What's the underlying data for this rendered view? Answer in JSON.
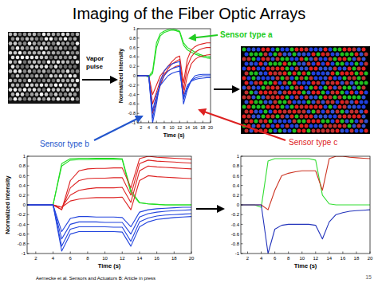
{
  "slide": {
    "title": "Imaging of the Fiber Optic Arrays",
    "vapor_pulse": [
      "Vapor",
      "pulse"
    ],
    "sensor_labels": [
      {
        "text": "Sensor type a",
        "color": "#22cc22"
      },
      {
        "text": "Sensor type b",
        "color": "#2255cc"
      },
      {
        "text": "Sensor type c",
        "color": "#dd2222"
      }
    ],
    "citation": "Aernecke et al. Sensors and Actuators B: Article in press",
    "page": "15"
  },
  "chart_data": [
    {
      "type": "line",
      "x_label": "Time (s)",
      "y_label": "Normalized intensity",
      "x": [
        1,
        2,
        3,
        4,
        5,
        6,
        7,
        8,
        9,
        10,
        11,
        12,
        13,
        14,
        15,
        16,
        17,
        18,
        19,
        20
      ],
      "xlim": [
        1,
        20
      ],
      "xticks": [
        2,
        4,
        6,
        8,
        10,
        12,
        14,
        16,
        18,
        20
      ],
      "ylim": [
        -1,
        1
      ],
      "yticks": [
        -1,
        -0.8,
        -0.6,
        -0.4,
        -0.2,
        0,
        0.2,
        0.4,
        0.6,
        0.8,
        1
      ],
      "series": [
        {
          "color": "#22dd22",
          "values": [
            0,
            0,
            0,
            -0.02,
            0.1,
            0.7,
            0.9,
            0.95,
            0.98,
            1,
            0.98,
            0.95,
            0.7,
            0.6,
            0.55,
            0.5,
            0.46,
            0.43,
            0.41,
            0.4
          ]
        },
        {
          "color": "#22dd22",
          "values": [
            0,
            0,
            0,
            -0.03,
            0.05,
            0.6,
            0.85,
            0.92,
            0.95,
            0.97,
            0.96,
            0.93,
            0.65,
            0.55,
            0.5,
            0.46,
            0.43,
            0.4,
            0.38,
            0.37
          ]
        },
        {
          "color": "#dd2222",
          "values": [
            0,
            0,
            0,
            0,
            -0.8,
            -0.5,
            -0.2,
            0,
            0.15,
            0.25,
            0.3,
            0.35,
            -0.3,
            0.2,
            0.4,
            0.5,
            0.55,
            0.58,
            0.6,
            0.6
          ]
        },
        {
          "color": "#dd2222",
          "values": [
            0,
            0,
            0,
            0,
            -0.6,
            -0.35,
            -0.1,
            0.05,
            0.1,
            0.15,
            0.2,
            0.22,
            -0.4,
            0,
            0.25,
            0.35,
            0.4,
            0.42,
            0.44,
            0.45
          ]
        },
        {
          "color": "#dd2222",
          "values": [
            0,
            0,
            0,
            0,
            -0.4,
            -0.2,
            0,
            0.1,
            0.2,
            0.3,
            0.38,
            0.42,
            -0.15,
            0.35,
            0.55,
            0.62,
            0.66,
            0.68,
            0.7,
            0.7
          ]
        },
        {
          "color": "#2244dd",
          "values": [
            0,
            0,
            0,
            0,
            -1,
            -0.6,
            -0.1,
            0.1,
            0.2,
            0.25,
            0.28,
            0.3,
            -0.6,
            -0.3,
            -0.1,
            0,
            0.02,
            0.03,
            0.03,
            0.03
          ]
        },
        {
          "color": "#2244dd",
          "values": [
            0,
            0,
            0,
            0,
            -0.9,
            -0.5,
            -0.15,
            0,
            0.1,
            0.15,
            0.18,
            0.2,
            -0.5,
            -0.25,
            -0.1,
            -0.05,
            -0.02,
            0,
            0,
            0
          ]
        },
        {
          "color": "#2244dd",
          "values": [
            0,
            0,
            0,
            0,
            -0.75,
            -0.4,
            -0.2,
            -0.1,
            0,
            0.05,
            0.08,
            0.1,
            -0.45,
            -0.2,
            -0.12,
            -0.08,
            -0.06,
            -0.05,
            -0.04,
            -0.04
          ]
        }
      ]
    },
    {
      "type": "line",
      "x_label": "Time (s)",
      "y_label": "Normalized intensity",
      "x": [
        1,
        2,
        3,
        4,
        5,
        6,
        7,
        8,
        9,
        10,
        11,
        12,
        13,
        14,
        15,
        16,
        17,
        18,
        19,
        20
      ],
      "xlim": [
        1,
        20
      ],
      "xticks": [
        2,
        4,
        6,
        8,
        10,
        12,
        14,
        16,
        18,
        20
      ],
      "ylim": [
        -1,
        1
      ],
      "yticks": [
        -1,
        -0.8,
        -0.6,
        -0.4,
        -0.2,
        0,
        0.2,
        0.4,
        0.6,
        0.8,
        1
      ],
      "series": [
        {
          "color": "#22dd22",
          "values": [
            0,
            0,
            0,
            0,
            0.85,
            0.95,
            0.96,
            0.96,
            0.96,
            0.96,
            0.96,
            0.95,
            0.3,
            0.05,
            0.02,
            0.01,
            0,
            0,
            0,
            0
          ]
        },
        {
          "color": "#22dd22",
          "values": [
            0,
            0,
            0,
            0,
            0.8,
            0.92,
            0.93,
            0.93,
            0.94,
            0.94,
            0.94,
            0.93,
            0.25,
            0.04,
            0.02,
            0.01,
            0,
            0,
            0,
            0
          ]
        },
        {
          "color": "#dd2222",
          "values": [
            0,
            0,
            0,
            0,
            -0.1,
            0.5,
            0.7,
            0.74,
            0.75,
            0.75,
            0.76,
            0.76,
            0.35,
            0.95,
            1,
            0.98,
            0.97,
            0.96,
            0.95,
            0.94
          ]
        },
        {
          "color": "#dd2222",
          "values": [
            0,
            0,
            0,
            0,
            -0.1,
            0.35,
            0.5,
            0.54,
            0.55,
            0.55,
            0.56,
            0.56,
            0.2,
            0.85,
            0.92,
            0.9,
            0.89,
            0.88,
            0.87,
            0.86
          ]
        },
        {
          "color": "#dd2222",
          "values": [
            0,
            0,
            0,
            0,
            -0.05,
            0.2,
            0.3,
            0.33,
            0.35,
            0.35,
            0.35,
            0.36,
            0.05,
            0.7,
            0.8,
            0.78,
            0.77,
            0.76,
            0.75,
            0.74
          ]
        },
        {
          "color": "#dd2222",
          "values": [
            0,
            0,
            0,
            0,
            -0.05,
            0.08,
            0.12,
            0.14,
            0.15,
            0.15,
            0.15,
            0.16,
            -0.1,
            0.5,
            0.6,
            0.58,
            0.57,
            0.56,
            0.55,
            0.54
          ]
        },
        {
          "color": "#2244dd",
          "values": [
            0,
            0,
            0,
            0,
            -0.95,
            -0.6,
            -0.55,
            -0.55,
            -0.55,
            -0.55,
            -0.55,
            -0.56,
            -0.85,
            -0.45,
            -0.35,
            -0.3,
            -0.28,
            -0.26,
            -0.25,
            -0.24
          ]
        },
        {
          "color": "#2244dd",
          "values": [
            0,
            0,
            0,
            0,
            -0.85,
            -0.5,
            -0.45,
            -0.45,
            -0.45,
            -0.45,
            -0.46,
            -0.46,
            -0.75,
            -0.35,
            -0.27,
            -0.23,
            -0.21,
            -0.2,
            -0.19,
            -0.18
          ]
        },
        {
          "color": "#2244dd",
          "values": [
            0,
            0,
            0,
            0,
            -0.7,
            -0.4,
            -0.35,
            -0.35,
            -0.35,
            -0.36,
            -0.36,
            -0.36,
            -0.6,
            -0.25,
            -0.18,
            -0.15,
            -0.13,
            -0.12,
            -0.11,
            -0.1
          ]
        },
        {
          "color": "#2244dd",
          "values": [
            0,
            0,
            0,
            0,
            -0.55,
            -0.28,
            -0.24,
            -0.24,
            -0.25,
            -0.25,
            -0.25,
            -0.26,
            -0.45,
            -0.15,
            -0.1,
            -0.08,
            -0.07,
            -0.06,
            -0.05,
            -0.05
          ]
        }
      ]
    },
    {
      "type": "line",
      "x_label": "Time (s)",
      "x": [
        1,
        2,
        3,
        4,
        5,
        6,
        7,
        8,
        9,
        10,
        11,
        12,
        13,
        14,
        15,
        16,
        17,
        18,
        19,
        20
      ],
      "xlim": [
        1,
        20
      ],
      "xticks": [
        2,
        4,
        6,
        8,
        10,
        12,
        14,
        16,
        18,
        20
      ],
      "ylim": [
        -1,
        1
      ],
      "yticks": [
        -1,
        -0.8,
        -0.6,
        -0.4,
        -0.2,
        0,
        0.2,
        0.4,
        0.6,
        0.8,
        1
      ],
      "series": [
        {
          "color": "#33dd33",
          "values": [
            0,
            0,
            0,
            -0.05,
            0.9,
            0.95,
            0.95,
            0.95,
            0.95,
            0.95,
            0.95,
            0.92,
            0.2,
            0.02,
            0,
            0,
            0,
            0,
            0,
            0
          ]
        },
        {
          "color": "#cc3322",
          "values": [
            0,
            0,
            0,
            0,
            -0.1,
            0.3,
            0.6,
            0.65,
            0.68,
            0.7,
            0.7,
            0.7,
            0.3,
            0.95,
            1,
            1,
            0.98,
            0.97,
            0.96,
            0.95
          ]
        },
        {
          "color": "#2233bb",
          "values": [
            0,
            0,
            0,
            0,
            -1,
            -0.5,
            -0.42,
            -0.4,
            -0.4,
            -0.4,
            -0.4,
            -0.42,
            -0.7,
            -0.35,
            -0.2,
            -0.16,
            -0.13,
            -0.12,
            -0.11,
            -0.1
          ]
        }
      ]
    }
  ]
}
